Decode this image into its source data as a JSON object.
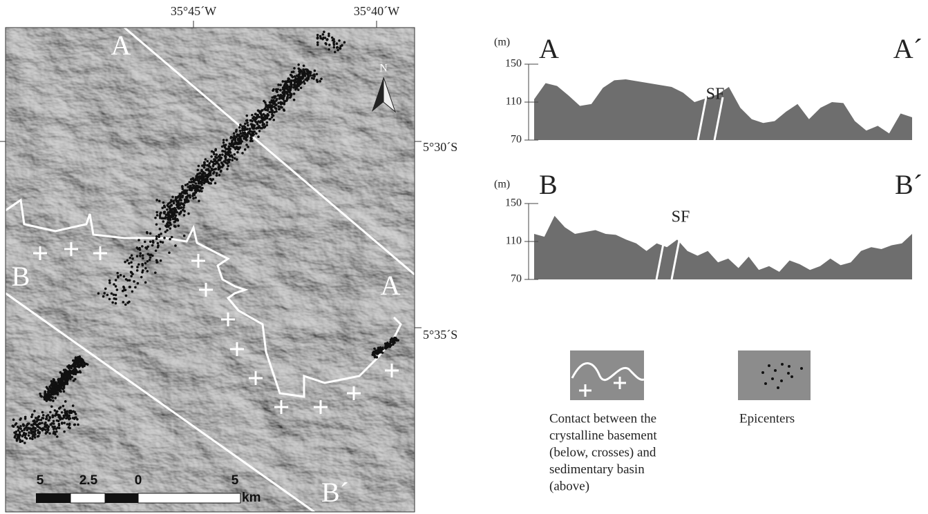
{
  "map": {
    "lon_labels": [
      "35°45´W",
      "35°40´W"
    ],
    "lat_labels": [
      "5°30´S",
      "5°35´S"
    ],
    "section_labels": [
      "A",
      "A",
      "B",
      "B´"
    ],
    "north": "N",
    "scale": {
      "labels": [
        "5",
        "2.5",
        "0",
        "5"
      ],
      "unit": "km"
    }
  },
  "profiles": [
    {
      "unit": "(m)",
      "start": "A",
      "end": "A´",
      "fault": "SF",
      "ylim": [
        70,
        150
      ],
      "yticks": [
        70,
        110,
        150
      ],
      "values": [
        113,
        130,
        127,
        117,
        106,
        108,
        125,
        133,
        134,
        132,
        130,
        128,
        126,
        120,
        110,
        114,
        118,
        126,
        104,
        92,
        88,
        90,
        100,
        108,
        92,
        104,
        110,
        109,
        90,
        80,
        85,
        77,
        98,
        94
      ]
    },
    {
      "unit": "(m)",
      "start": "B",
      "end": "B´",
      "fault": "SF",
      "ylim": [
        70,
        150
      ],
      "yticks": [
        70,
        110,
        150
      ],
      "values": [
        118,
        115,
        137,
        125,
        118,
        120,
        122,
        118,
        117,
        112,
        108,
        100,
        108,
        104,
        112,
        100,
        95,
        100,
        88,
        92,
        82,
        94,
        80,
        84,
        78,
        90,
        86,
        80,
        84,
        92,
        85,
        88,
        100,
        104,
        102,
        106,
        108,
        118
      ]
    }
  ],
  "legend": [
    {
      "lines": [
        "Contact between the",
        "crystalline basement",
        "(below, crosses) and",
        "sedimentary basin",
        "(above)"
      ]
    },
    {
      "lines": [
        "Epicenters"
      ]
    }
  ]
}
